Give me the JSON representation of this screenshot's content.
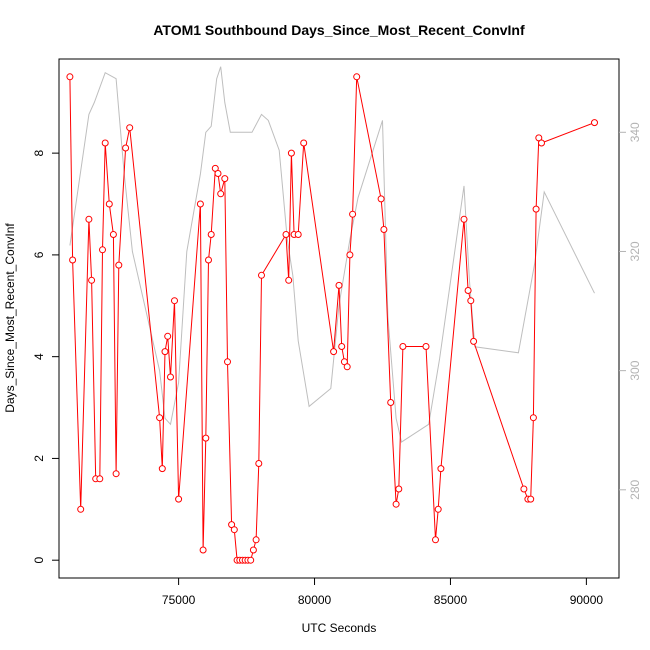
{
  "chart_data": {
    "type": "line",
    "title": "ATOM1 Southbound Days_Since_Most_Recent_ConvInf",
    "xlabel": "UTC Seconds",
    "ylabel": "Days_Since_Most_Recent_ConvInf",
    "xlim": [
      70600,
      91200
    ],
    "ylim": [
      -0.35,
      9.85
    ],
    "y2lim": [
      265.2,
      352.3
    ],
    "x_ticks": [
      75000,
      80000,
      85000,
      90000
    ],
    "x_tick_labels": [
      "75000",
      "80000",
      "85000",
      "90000"
    ],
    "y_ticks": [
      0,
      2,
      4,
      6,
      8
    ],
    "y_tick_labels": [
      "0",
      "2",
      "4",
      "6",
      "8"
    ],
    "y2_ticks": [
      280,
      300,
      320,
      340
    ],
    "y2_tick_labels": [
      "280",
      "300",
      "320",
      "340"
    ],
    "grid": false,
    "colors": {
      "primary": "#ff0000",
      "secondary": "#bebebe"
    },
    "series": [
      {
        "axis": "left",
        "style": "line+points",
        "points": [
          [
            71000,
            9.5
          ],
          [
            71100,
            5.9
          ],
          [
            71400,
            1.0
          ],
          [
            71700,
            6.7
          ],
          [
            71800,
            5.5
          ],
          [
            71950,
            1.6
          ],
          [
            72100,
            1.6
          ],
          [
            72200,
            6.1
          ],
          [
            72300,
            8.2
          ],
          [
            72450,
            7.0
          ],
          [
            72600,
            6.4
          ],
          [
            72700,
            1.7
          ],
          [
            72800,
            5.8
          ],
          [
            73050,
            8.1
          ],
          [
            73200,
            8.5
          ],
          [
            74300,
            2.8
          ],
          [
            74400,
            1.8
          ],
          [
            74500,
            4.1
          ],
          [
            74600,
            4.4
          ],
          [
            74700,
            3.6
          ],
          [
            74850,
            5.1
          ],
          [
            75000,
            1.2
          ],
          [
            75800,
            7.0
          ],
          [
            75900,
            0.2
          ],
          [
            76000,
            2.4
          ],
          [
            76100,
            5.9
          ],
          [
            76200,
            6.4
          ],
          [
            76350,
            7.7
          ],
          [
            76450,
            7.6
          ],
          [
            76550,
            7.2
          ],
          [
            76700,
            7.5
          ],
          [
            76800,
            3.9
          ],
          [
            76950,
            0.7
          ],
          [
            77050,
            0.6
          ],
          [
            77150,
            0.0
          ],
          [
            77250,
            0.0
          ],
          [
            77350,
            0.0
          ],
          [
            77450,
            0.0
          ],
          [
            77550,
            0.0
          ],
          [
            77650,
            0.0
          ],
          [
            77750,
            0.2
          ],
          [
            77850,
            0.4
          ],
          [
            77950,
            1.9
          ],
          [
            78050,
            5.6
          ],
          [
            78950,
            6.4
          ],
          [
            79050,
            5.5
          ],
          [
            79150,
            8.0
          ],
          [
            79250,
            6.4
          ],
          [
            79400,
            6.4
          ],
          [
            79600,
            8.2
          ],
          [
            80700,
            4.1
          ],
          [
            80900,
            5.4
          ],
          [
            81000,
            4.2
          ],
          [
            81100,
            3.9
          ],
          [
            81200,
            3.8
          ],
          [
            81300,
            6.0
          ],
          [
            81400,
            6.8
          ],
          [
            81550,
            9.5
          ],
          [
            82450,
            7.1
          ],
          [
            82550,
            6.5
          ],
          [
            82800,
            3.1
          ],
          [
            83000,
            1.1
          ],
          [
            83100,
            1.4
          ],
          [
            83250,
            4.2
          ],
          [
            84100,
            4.2
          ],
          [
            84450,
            0.4
          ],
          [
            84550,
            1.0
          ],
          [
            84650,
            1.8
          ],
          [
            85500,
            6.7
          ],
          [
            85650,
            5.3
          ],
          [
            85750,
            5.1
          ],
          [
            85850,
            4.3
          ],
          [
            87700,
            1.4
          ],
          [
            87850,
            1.2
          ],
          [
            87950,
            1.2
          ],
          [
            88050,
            2.8
          ],
          [
            88150,
            6.9
          ],
          [
            88250,
            8.3
          ],
          [
            88350,
            8.2
          ],
          [
            90300,
            8.6
          ]
        ]
      },
      {
        "axis": "right",
        "style": "line",
        "points": [
          [
            71000,
            321
          ],
          [
            71700,
            343
          ],
          [
            71900,
            345
          ],
          [
            72300,
            350
          ],
          [
            72700,
            349
          ],
          [
            73000,
            333
          ],
          [
            73300,
            320
          ],
          [
            74300,
            300
          ],
          [
            74500,
            292
          ],
          [
            74700,
            291
          ],
          [
            75000,
            298
          ],
          [
            75300,
            320
          ],
          [
            75800,
            333
          ],
          [
            76000,
            340
          ],
          [
            76200,
            341
          ],
          [
            76400,
            349
          ],
          [
            76550,
            351
          ],
          [
            76700,
            345
          ],
          [
            76900,
            340
          ],
          [
            77300,
            340
          ],
          [
            77700,
            340
          ],
          [
            78050,
            343
          ],
          [
            78300,
            342
          ],
          [
            78700,
            337
          ],
          [
            79000,
            322
          ],
          [
            79200,
            316
          ],
          [
            79400,
            305
          ],
          [
            79800,
            294
          ],
          [
            80600,
            297
          ],
          [
            80900,
            311
          ],
          [
            81300,
            322
          ],
          [
            81600,
            329
          ],
          [
            82500,
            342
          ],
          [
            82700,
            309
          ],
          [
            83000,
            292
          ],
          [
            83200,
            288
          ],
          [
            84200,
            291
          ],
          [
            84600,
            302
          ],
          [
            85500,
            331
          ],
          [
            85700,
            315
          ],
          [
            85900,
            304
          ],
          [
            87500,
            303
          ],
          [
            88100,
            318
          ],
          [
            88450,
            330
          ],
          [
            90300,
            313
          ]
        ]
      }
    ]
  }
}
